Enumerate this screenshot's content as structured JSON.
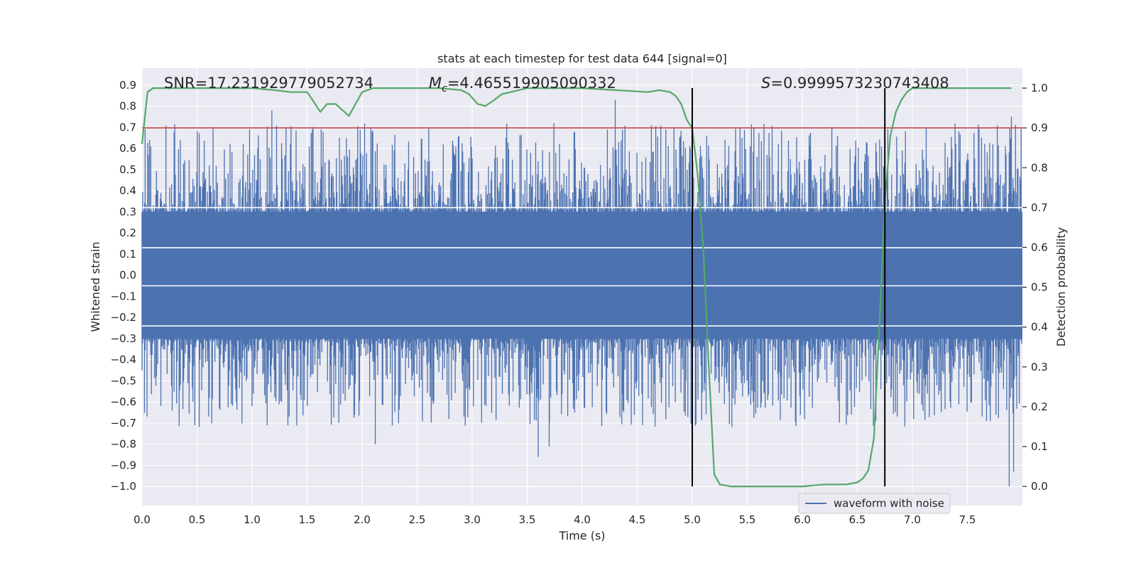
{
  "chart_data": {
    "type": "line",
    "title": "stats at each timestep for test data 644 [signal=0]",
    "xlabel": "Time (s)",
    "ylabel": "Whitened strain",
    "y2label": "Detection probability",
    "xlim": [
      0.0,
      8.0
    ],
    "ylim": [
      -1.09,
      0.98
    ],
    "y2lim": [
      -0.048,
      1.05
    ],
    "xticks": [
      0.0,
      0.5,
      1.0,
      1.5,
      2.0,
      2.5,
      3.0,
      3.5,
      4.0,
      4.5,
      5.0,
      5.5,
      6.0,
      6.5,
      7.0,
      7.5
    ],
    "xtick_labels": [
      "0.0",
      "0.5",
      "1.0",
      "1.5",
      "2.0",
      "2.5",
      "3.0",
      "3.5",
      "4.0",
      "4.5",
      "5.0",
      "5.5",
      "6.0",
      "6.5",
      "7.0",
      "7.5"
    ],
    "yticks": [
      -1.0,
      -0.9,
      -0.8,
      -0.7,
      -0.6,
      -0.5,
      -0.4,
      -0.3,
      -0.2,
      -0.1,
      0.0,
      0.1,
      0.2,
      0.3,
      0.4,
      0.5,
      0.6,
      0.7,
      0.8,
      0.9
    ],
    "ytick_labels": [
      "−1.0",
      "−0.9",
      "−0.8",
      "−0.7",
      "−0.6",
      "−0.5",
      "−0.4",
      "−0.3",
      "−0.2",
      "−0.1",
      "0.0",
      "0.1",
      "0.2",
      "0.3",
      "0.4",
      "0.5",
      "0.6",
      "0.7",
      "0.8",
      "0.9"
    ],
    "y2ticks": [
      0.0,
      0.1,
      0.2,
      0.3,
      0.4,
      0.5,
      0.6,
      0.7,
      0.8,
      0.9,
      1.0
    ],
    "y2tick_labels": [
      "0.0",
      "0.1",
      "0.2",
      "0.3",
      "0.4",
      "0.5",
      "0.6",
      "0.7",
      "0.8",
      "0.9",
      "1.0"
    ],
    "grid": true,
    "annotations": {
      "snr": "SNR=17.231929779052734",
      "mc_symbol": "M",
      "mc_sub": "c",
      "mc_value": "=4.465519905090332",
      "s_symbol": "S",
      "s_value": "=0.9999573230743408"
    },
    "series": [
      {
        "name": "waveform with noise",
        "axis": "left",
        "style": "noise",
        "color": "#4c72b0",
        "typical_amplitude": 0.3,
        "spike_max": 0.83,
        "spike_min": -1.0
      },
      {
        "name": "detection probability",
        "axis": "right",
        "color": "#55a868",
        "x": [
          0.0,
          0.05,
          0.1,
          0.2,
          0.4,
          0.6,
          0.8,
          1.0,
          1.2,
          1.35,
          1.5,
          1.55,
          1.62,
          1.68,
          1.76,
          1.88,
          1.96,
          2.0,
          2.1,
          2.3,
          2.5,
          2.7,
          2.9,
          2.97,
          3.05,
          3.12,
          3.2,
          3.27,
          3.35,
          3.5,
          3.8,
          4.0,
          4.3,
          4.6,
          4.7,
          4.8,
          4.85,
          4.9,
          4.95,
          5.0,
          5.05,
          5.1,
          5.15,
          5.2,
          5.25,
          5.35,
          5.5,
          5.8,
          6.0,
          6.2,
          6.4,
          6.5,
          6.55,
          6.6,
          6.65,
          6.7,
          6.75,
          6.8,
          6.85,
          6.9,
          6.95,
          7.0,
          7.05,
          7.1,
          7.2,
          7.5,
          7.9
        ],
        "values": [
          0.86,
          0.99,
          1.0,
          1.0,
          1.0,
          1.0,
          1.0,
          1.0,
          0.995,
          0.99,
          0.99,
          0.97,
          0.94,
          0.96,
          0.96,
          0.93,
          0.97,
          0.99,
          1.0,
          1.0,
          1.0,
          1.0,
          0.995,
          0.985,
          0.96,
          0.955,
          0.97,
          0.985,
          0.99,
          1.0,
          1.0,
          1.0,
          0.995,
          0.99,
          0.995,
          0.99,
          0.98,
          0.96,
          0.92,
          0.9,
          0.78,
          0.6,
          0.3,
          0.03,
          0.005,
          0.0,
          0.0,
          0.0,
          0.0,
          0.005,
          0.005,
          0.01,
          0.02,
          0.04,
          0.12,
          0.4,
          0.72,
          0.88,
          0.94,
          0.97,
          0.99,
          1.0,
          1.0,
          1.0,
          1.0,
          1.0,
          1.0
        ]
      }
    ],
    "threshold": {
      "axis": "right",
      "value": 0.9,
      "color": "#c44e52"
    },
    "vlines": [
      5.0,
      6.75
    ],
    "legend": {
      "location": "lower-right",
      "entries": [
        "waveform with noise"
      ]
    }
  }
}
